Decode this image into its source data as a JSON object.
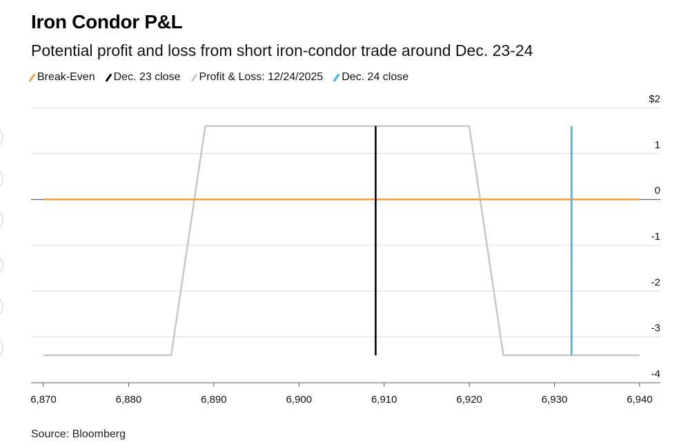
{
  "chart_data": {
    "type": "line",
    "title": "Iron Condor P&L",
    "subtitle": "Potential profit and loss from short iron-condor trade around Dec. 23-24",
    "source": "Source: Bloomberg",
    "xlim": [
      6870,
      6940
    ],
    "ylim": [
      -4,
      2
    ],
    "x_ticks": [
      6870,
      6880,
      6890,
      6900,
      6910,
      6920,
      6930,
      6940
    ],
    "x_tick_labels": [
      "6,870",
      "6,880",
      "6,890",
      "6,900",
      "6,910",
      "6,920",
      "6,930",
      "6,940"
    ],
    "y_ticks": [
      2,
      1,
      0,
      -1,
      -2,
      -3,
      -4
    ],
    "y_tick_labels": [
      "$2",
      "1",
      "0",
      "-1",
      "-2",
      "-3",
      "-4"
    ],
    "grid": true,
    "legend_position": "top-left",
    "series": [
      {
        "name": "Break-Even",
        "color": "#f5a142",
        "kind": "line",
        "x": [
          6870,
          6940
        ],
        "y": [
          0,
          0
        ]
      },
      {
        "name": "Dec. 23 close",
        "color": "#000000",
        "kind": "vertical-line",
        "x": [
          6909,
          6909
        ],
        "y": [
          1.6,
          -3.4
        ]
      },
      {
        "name": "Profit & Loss: 12/24/2025",
        "color": "#c8c8c8",
        "kind": "line",
        "x": [
          6870,
          6885,
          6889,
          6920,
          6924,
          6940
        ],
        "y": [
          -3.4,
          -3.4,
          1.6,
          1.6,
          -3.4,
          -3.4
        ]
      },
      {
        "name": "Dec. 24 close",
        "color": "#3ab4ec",
        "kind": "vertical-line",
        "x": [
          6932,
          6932
        ],
        "y": [
          1.6,
          -3.4
        ]
      }
    ]
  }
}
